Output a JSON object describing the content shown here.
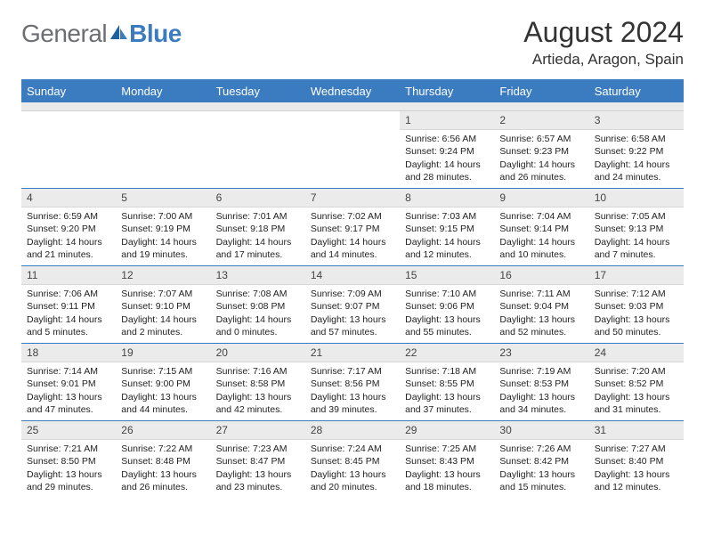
{
  "logo": {
    "text_general": "General",
    "text_blue": "Blue"
  },
  "title": "August 2024",
  "location": "Artieda, Aragon, Spain",
  "colors": {
    "accent": "#3b7bbf",
    "header_text": "#ffffff",
    "daynum_bg": "#ebebeb",
    "body_text": "#222222",
    "logo_gray": "#6d6e71"
  },
  "weekdays": [
    "Sunday",
    "Monday",
    "Tuesday",
    "Wednesday",
    "Thursday",
    "Friday",
    "Saturday"
  ],
  "weeks": [
    [
      {
        "n": "",
        "sunrise": "",
        "sunset": "",
        "daylight": ""
      },
      {
        "n": "",
        "sunrise": "",
        "sunset": "",
        "daylight": ""
      },
      {
        "n": "",
        "sunrise": "",
        "sunset": "",
        "daylight": ""
      },
      {
        "n": "",
        "sunrise": "",
        "sunset": "",
        "daylight": ""
      },
      {
        "n": "1",
        "sunrise": "Sunrise: 6:56 AM",
        "sunset": "Sunset: 9:24 PM",
        "daylight": "Daylight: 14 hours and 28 minutes."
      },
      {
        "n": "2",
        "sunrise": "Sunrise: 6:57 AM",
        "sunset": "Sunset: 9:23 PM",
        "daylight": "Daylight: 14 hours and 26 minutes."
      },
      {
        "n": "3",
        "sunrise": "Sunrise: 6:58 AM",
        "sunset": "Sunset: 9:22 PM",
        "daylight": "Daylight: 14 hours and 24 minutes."
      }
    ],
    [
      {
        "n": "4",
        "sunrise": "Sunrise: 6:59 AM",
        "sunset": "Sunset: 9:20 PM",
        "daylight": "Daylight: 14 hours and 21 minutes."
      },
      {
        "n": "5",
        "sunrise": "Sunrise: 7:00 AM",
        "sunset": "Sunset: 9:19 PM",
        "daylight": "Daylight: 14 hours and 19 minutes."
      },
      {
        "n": "6",
        "sunrise": "Sunrise: 7:01 AM",
        "sunset": "Sunset: 9:18 PM",
        "daylight": "Daylight: 14 hours and 17 minutes."
      },
      {
        "n": "7",
        "sunrise": "Sunrise: 7:02 AM",
        "sunset": "Sunset: 9:17 PM",
        "daylight": "Daylight: 14 hours and 14 minutes."
      },
      {
        "n": "8",
        "sunrise": "Sunrise: 7:03 AM",
        "sunset": "Sunset: 9:15 PM",
        "daylight": "Daylight: 14 hours and 12 minutes."
      },
      {
        "n": "9",
        "sunrise": "Sunrise: 7:04 AM",
        "sunset": "Sunset: 9:14 PM",
        "daylight": "Daylight: 14 hours and 10 minutes."
      },
      {
        "n": "10",
        "sunrise": "Sunrise: 7:05 AM",
        "sunset": "Sunset: 9:13 PM",
        "daylight": "Daylight: 14 hours and 7 minutes."
      }
    ],
    [
      {
        "n": "11",
        "sunrise": "Sunrise: 7:06 AM",
        "sunset": "Sunset: 9:11 PM",
        "daylight": "Daylight: 14 hours and 5 minutes."
      },
      {
        "n": "12",
        "sunrise": "Sunrise: 7:07 AM",
        "sunset": "Sunset: 9:10 PM",
        "daylight": "Daylight: 14 hours and 2 minutes."
      },
      {
        "n": "13",
        "sunrise": "Sunrise: 7:08 AM",
        "sunset": "Sunset: 9:08 PM",
        "daylight": "Daylight: 14 hours and 0 minutes."
      },
      {
        "n": "14",
        "sunrise": "Sunrise: 7:09 AM",
        "sunset": "Sunset: 9:07 PM",
        "daylight": "Daylight: 13 hours and 57 minutes."
      },
      {
        "n": "15",
        "sunrise": "Sunrise: 7:10 AM",
        "sunset": "Sunset: 9:06 PM",
        "daylight": "Daylight: 13 hours and 55 minutes."
      },
      {
        "n": "16",
        "sunrise": "Sunrise: 7:11 AM",
        "sunset": "Sunset: 9:04 PM",
        "daylight": "Daylight: 13 hours and 52 minutes."
      },
      {
        "n": "17",
        "sunrise": "Sunrise: 7:12 AM",
        "sunset": "Sunset: 9:03 PM",
        "daylight": "Daylight: 13 hours and 50 minutes."
      }
    ],
    [
      {
        "n": "18",
        "sunrise": "Sunrise: 7:14 AM",
        "sunset": "Sunset: 9:01 PM",
        "daylight": "Daylight: 13 hours and 47 minutes."
      },
      {
        "n": "19",
        "sunrise": "Sunrise: 7:15 AM",
        "sunset": "Sunset: 9:00 PM",
        "daylight": "Daylight: 13 hours and 44 minutes."
      },
      {
        "n": "20",
        "sunrise": "Sunrise: 7:16 AM",
        "sunset": "Sunset: 8:58 PM",
        "daylight": "Daylight: 13 hours and 42 minutes."
      },
      {
        "n": "21",
        "sunrise": "Sunrise: 7:17 AM",
        "sunset": "Sunset: 8:56 PM",
        "daylight": "Daylight: 13 hours and 39 minutes."
      },
      {
        "n": "22",
        "sunrise": "Sunrise: 7:18 AM",
        "sunset": "Sunset: 8:55 PM",
        "daylight": "Daylight: 13 hours and 37 minutes."
      },
      {
        "n": "23",
        "sunrise": "Sunrise: 7:19 AM",
        "sunset": "Sunset: 8:53 PM",
        "daylight": "Daylight: 13 hours and 34 minutes."
      },
      {
        "n": "24",
        "sunrise": "Sunrise: 7:20 AM",
        "sunset": "Sunset: 8:52 PM",
        "daylight": "Daylight: 13 hours and 31 minutes."
      }
    ],
    [
      {
        "n": "25",
        "sunrise": "Sunrise: 7:21 AM",
        "sunset": "Sunset: 8:50 PM",
        "daylight": "Daylight: 13 hours and 29 minutes."
      },
      {
        "n": "26",
        "sunrise": "Sunrise: 7:22 AM",
        "sunset": "Sunset: 8:48 PM",
        "daylight": "Daylight: 13 hours and 26 minutes."
      },
      {
        "n": "27",
        "sunrise": "Sunrise: 7:23 AM",
        "sunset": "Sunset: 8:47 PM",
        "daylight": "Daylight: 13 hours and 23 minutes."
      },
      {
        "n": "28",
        "sunrise": "Sunrise: 7:24 AM",
        "sunset": "Sunset: 8:45 PM",
        "daylight": "Daylight: 13 hours and 20 minutes."
      },
      {
        "n": "29",
        "sunrise": "Sunrise: 7:25 AM",
        "sunset": "Sunset: 8:43 PM",
        "daylight": "Daylight: 13 hours and 18 minutes."
      },
      {
        "n": "30",
        "sunrise": "Sunrise: 7:26 AM",
        "sunset": "Sunset: 8:42 PM",
        "daylight": "Daylight: 13 hours and 15 minutes."
      },
      {
        "n": "31",
        "sunrise": "Sunrise: 7:27 AM",
        "sunset": "Sunset: 8:40 PM",
        "daylight": "Daylight: 13 hours and 12 minutes."
      }
    ]
  ]
}
